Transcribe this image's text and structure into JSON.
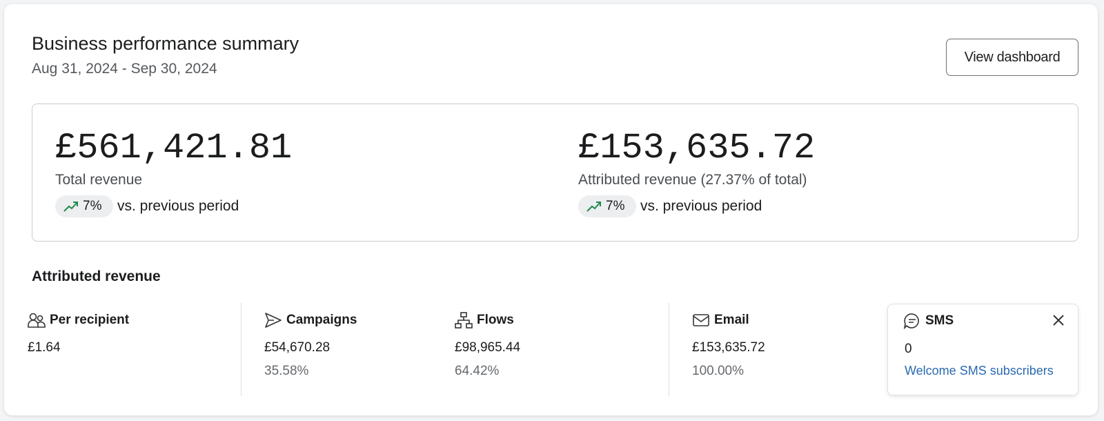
{
  "header": {
    "title": "Business performance summary",
    "date_range": "Aug 31, 2024 - Sep 30, 2024",
    "button": "View dashboard"
  },
  "summary": [
    {
      "value": "£561,421.81",
      "label": "Total revenue",
      "change": "7%",
      "comparison": "vs. previous period"
    },
    {
      "value": "£153,635.72",
      "label": "Attributed revenue (27.37% of total)",
      "change": "7%",
      "comparison": "vs. previous period"
    }
  ],
  "attributed": {
    "title": "Attributed revenue",
    "metrics": [
      {
        "label": "Per recipient",
        "value": "£1.64"
      },
      {
        "label": "Campaigns",
        "value": "£54,670.28",
        "share": "35.58%"
      },
      {
        "label": "Flows",
        "value": "£98,965.44",
        "share": "64.42%"
      },
      {
        "label": "Email",
        "value": "£153,635.72",
        "share": "100.00%"
      }
    ],
    "sms": {
      "label": "SMS",
      "value": "0",
      "link": "Welcome SMS subscribers"
    }
  }
}
